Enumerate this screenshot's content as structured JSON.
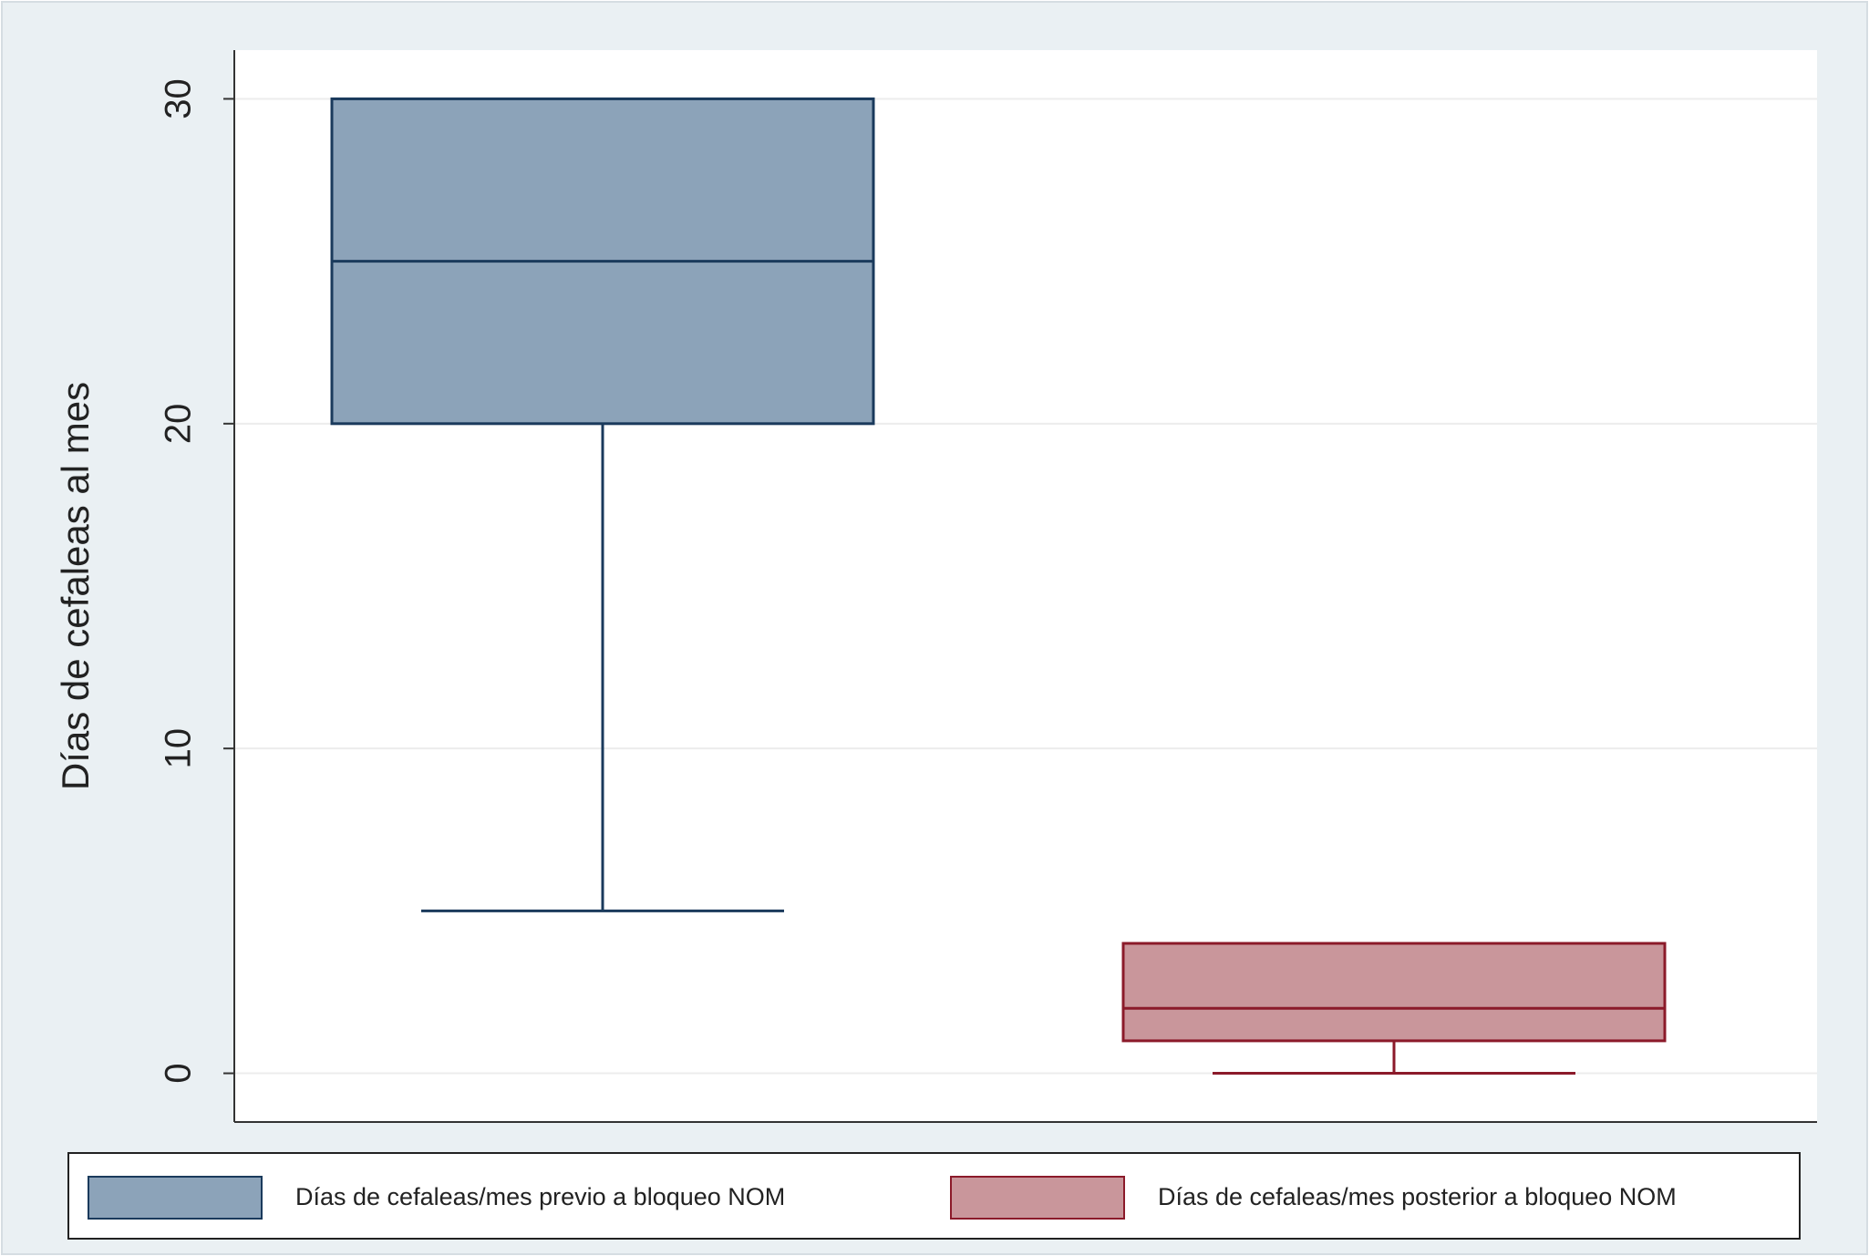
{
  "chart_data": {
    "type": "box",
    "y_label": "Días de cefaleas al mes",
    "ylim": [
      -1.5,
      31.5
    ],
    "yticks": [
      0,
      10,
      20,
      30
    ],
    "grid": true,
    "series": [
      {
        "name": "Días de cefaleas/mes previo a bloqueo NOM",
        "color": "#8ca3b9",
        "min": 5,
        "q1": 20,
        "median": 25,
        "q3": 30,
        "max": 30
      },
      {
        "name": "Días de cefaleas/mes posterior a bloqueo NOM",
        "color": "#c9969b",
        "min": 0,
        "q1": 1,
        "median": 2,
        "q3": 4,
        "max": 4
      }
    ]
  }
}
